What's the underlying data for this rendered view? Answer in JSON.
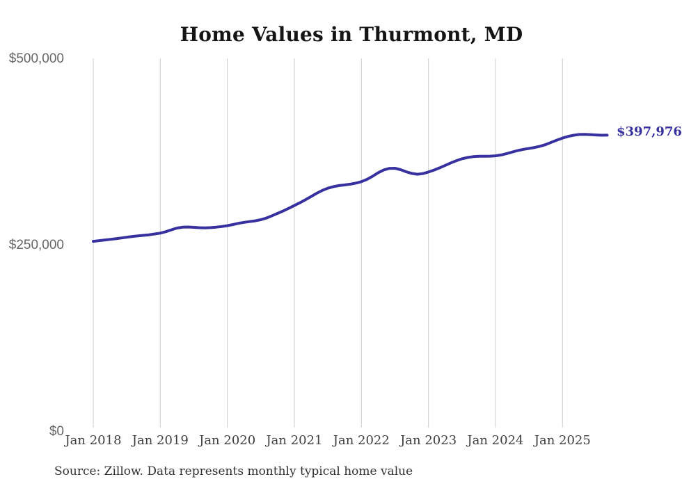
{
  "title": "Home Values in Thurmont, MD",
  "source_note": "Source: Zillow. Data represents monthly typical home value",
  "final_value_label": "$397,976",
  "colors": {
    "line": "#37309f",
    "grid": "#cdcdcd",
    "title_text": "#151515",
    "y_tick_text": "#666666",
    "x_tick_text": "#3f3f3f",
    "source_text": "#303030",
    "background": "#ffffff"
  },
  "chart_data": {
    "type": "line",
    "title": "Home Values in Thurmont, MD",
    "xlabel": "",
    "ylabel": "",
    "ylim": [
      0,
      500000
    ],
    "y_tick_labels": [
      "$0",
      "$250,000",
      "$500,000"
    ],
    "y_tick_values": [
      0,
      250000,
      500000
    ],
    "x_tick_labels": [
      "Jan 2018",
      "Jan 2019",
      "Jan 2020",
      "Jan 2021",
      "Jan 2022",
      "Jan 2023",
      "Jan 2024",
      "Jan 2025"
    ],
    "grid": "vertical-only",
    "legend": "none",
    "annotation": {
      "text": "$397,976",
      "at": "2025-09"
    },
    "x": [
      "2018-01",
      "2018-02",
      "2018-03",
      "2018-04",
      "2018-05",
      "2018-06",
      "2018-07",
      "2018-08",
      "2018-09",
      "2018-10",
      "2018-11",
      "2018-12",
      "2019-01",
      "2019-02",
      "2019-03",
      "2019-04",
      "2019-05",
      "2019-06",
      "2019-07",
      "2019-08",
      "2019-09",
      "2019-10",
      "2019-11",
      "2019-12",
      "2020-01",
      "2020-02",
      "2020-03",
      "2020-04",
      "2020-05",
      "2020-06",
      "2020-07",
      "2020-08",
      "2020-09",
      "2020-10",
      "2020-11",
      "2020-12",
      "2021-01",
      "2021-02",
      "2021-03",
      "2021-04",
      "2021-05",
      "2021-06",
      "2021-07",
      "2021-08",
      "2021-09",
      "2021-10",
      "2021-11",
      "2021-12",
      "2022-01",
      "2022-02",
      "2022-03",
      "2022-04",
      "2022-05",
      "2022-06",
      "2022-07",
      "2022-08",
      "2022-09",
      "2022-10",
      "2022-11",
      "2022-12",
      "2023-01",
      "2023-02",
      "2023-03",
      "2023-04",
      "2023-05",
      "2023-06",
      "2023-07",
      "2023-08",
      "2023-09",
      "2023-10",
      "2023-11",
      "2023-12",
      "2024-01",
      "2024-02",
      "2024-03",
      "2024-04",
      "2024-05",
      "2024-06",
      "2024-07",
      "2024-08",
      "2024-09",
      "2024-10",
      "2024-11",
      "2024-12",
      "2025-01",
      "2025-02",
      "2025-03",
      "2025-04",
      "2025-05",
      "2025-06",
      "2025-07",
      "2025-08",
      "2025-09"
    ],
    "series": [
      {
        "name": "Monthly typical home value",
        "values": [
          255500,
          256300,
          257200,
          258100,
          259000,
          260000,
          261000,
          262000,
          262800,
          263500,
          264300,
          265400,
          266500,
          268500,
          271000,
          273300,
          274400,
          274700,
          274300,
          273800,
          273600,
          273900,
          274500,
          275400,
          276500,
          278000,
          279700,
          281000,
          282000,
          283000,
          284500,
          286800,
          289800,
          293000,
          296300,
          299800,
          303500,
          307300,
          311400,
          315700,
          320000,
          323800,
          326800,
          328900,
          330300,
          331200,
          332200,
          333600,
          335500,
          338600,
          342800,
          347600,
          351300,
          353400,
          353500,
          351700,
          348900,
          346600,
          345500,
          346400,
          348500,
          351100,
          354100,
          357400,
          360700,
          363700,
          366200,
          368000,
          369100,
          369600,
          369700,
          369800,
          370200,
          371400,
          373200,
          375300,
          377300,
          378900,
          380100,
          381400,
          383100,
          385400,
          388300,
          391300,
          394000,
          396300,
          397900,
          398900,
          399100,
          398700,
          398200,
          397900,
          397976
        ]
      }
    ],
    "final_value": 397976
  }
}
